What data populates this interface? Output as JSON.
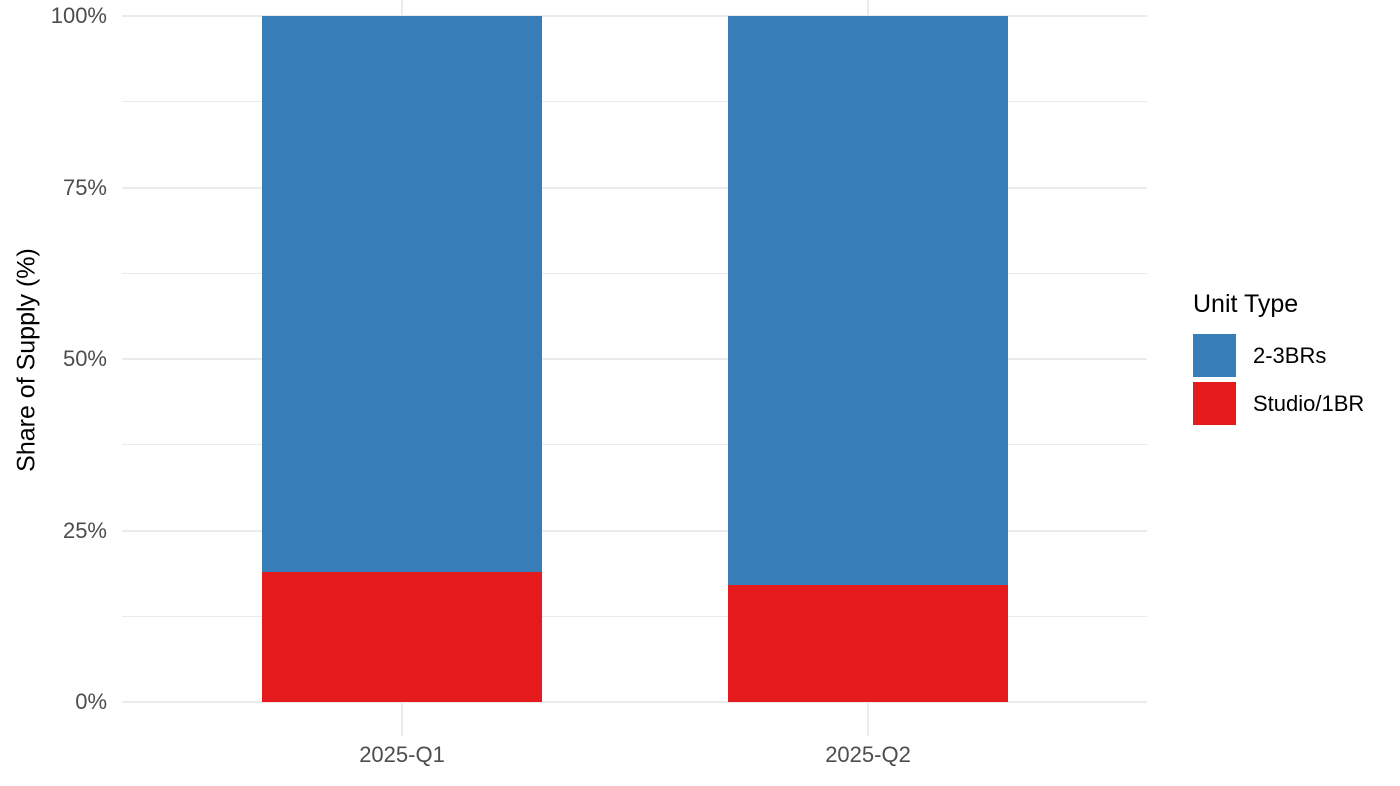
{
  "chart_data": {
    "type": "bar",
    "variant": "stacked-100-percent",
    "categories": [
      "2025-Q1",
      "2025-Q2"
    ],
    "series": [
      {
        "name": "2-3BRs",
        "color": "#377EB8",
        "values": [
          81,
          83
        ]
      },
      {
        "name": "Studio/1BR",
        "color": "#E41A1C",
        "values": [
          19,
          17
        ]
      }
    ],
    "stack_order_bottom_to_top": [
      "Studio/1BR",
      "2-3BRs"
    ],
    "title": "",
    "xlabel": "",
    "ylabel": "Share of Supply (%)",
    "ylim": [
      0,
      100
    ],
    "y_ticks": [
      {
        "value": 0,
        "label": "0%"
      },
      {
        "value": 25,
        "label": "25%"
      },
      {
        "value": 50,
        "label": "50%"
      },
      {
        "value": 75,
        "label": "75%"
      },
      {
        "value": 100,
        "label": "100%"
      }
    ],
    "y_minor_ticks": [
      12.5,
      37.5,
      62.5,
      87.5
    ],
    "grid": {
      "major": true,
      "minor": true,
      "color": "#EBEBEB"
    },
    "legend": {
      "title": "Unit Type",
      "position": "right",
      "entries": [
        {
          "label": "2-3BRs",
          "color": "#377EB8"
        },
        {
          "label": "Studio/1BR",
          "color": "#E41A1C"
        }
      ]
    },
    "colors": {
      "background": "#FFFFFF",
      "axis_text": "#4D4D4D",
      "title_text": "#000000"
    }
  }
}
